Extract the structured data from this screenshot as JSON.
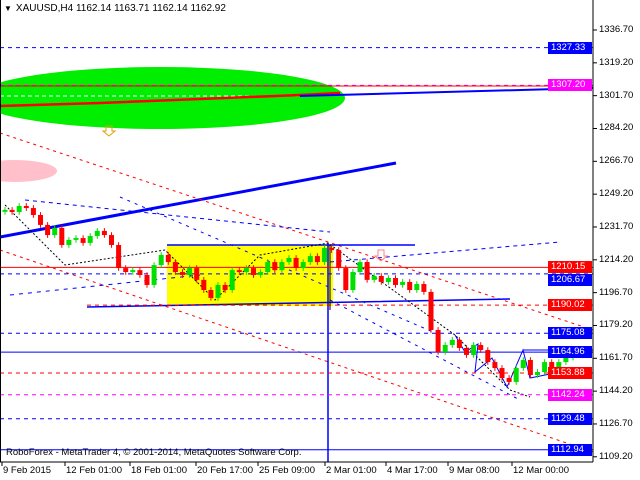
{
  "header": {
    "symbol": "XAUUSD,H4",
    "open": "1162.14",
    "high": "1163.71",
    "low": "1162.14",
    "close": "1162.92"
  },
  "footer": {
    "credit": "RoboForex - MetaTrader 4, © 2001-2014, MetaQuotes Software Corp."
  },
  "colors": {
    "bull": "#00e000",
    "bear": "#ff0000",
    "blue": "#0000ff",
    "red": "#ff0000",
    "magenta": "#ff00ff",
    "zone": "#ffff00",
    "ellipse": "#00ee00"
  },
  "chart_data": {
    "type": "candlestick",
    "symbol": "XAUUSD",
    "timeframe": "H4",
    "ylim": [
      1106,
      1346
    ],
    "y_ticks": [
      "1336.70",
      "1319.20",
      "1301.70",
      "1284.20",
      "1266.70",
      "1249.20",
      "1231.70",
      "1214.20",
      "1196.70",
      "1179.20",
      "1161.70",
      "1144.20",
      "1126.70",
      "1109.20"
    ],
    "x_ticks": [
      "9 Feb 2015",
      "12 Feb 01:00",
      "18 Feb 01:00",
      "20 Feb 17:00",
      "25 Feb 09:00",
      "2 Mar 01:00",
      "4 Mar 17:00",
      "9 Mar 08:00",
      "12 Mar 00:00"
    ],
    "close": [
      1240.8,
      1239.7,
      1242.9,
      1241.8,
      1238.1,
      1232.8,
      1227.4,
      1231.2,
      1222.1,
      1224.8,
      1225.8,
      1223.2,
      1226.9,
      1229.6,
      1227.4,
      1222.1,
      1209.8,
      1207.7,
      1208.7,
      1206.1,
      1200.8,
      1211.4,
      1216.8,
      1213.0,
      1207.7,
      1206.1,
      1209.8,
      1203.5,
      1198.1,
      1193.9,
      1200.8,
      1198.1,
      1208.7,
      1207.7,
      1209.8,
      1206.1,
      1207.7,
      1213.0,
      1208.7,
      1213.0,
      1215.2,
      1209.8,
      1213.0,
      1216.2,
      1213.0,
      1220.5,
      1219.4,
      1209.8,
      1198.1,
      1207.7,
      1213.0,
      1203.5,
      1205.6,
      1202.4,
      1204.5,
      1200.8,
      1202.4,
      1198.1,
      1201.3,
      1197.1,
      1176.8,
      1165.1,
      1168.8,
      1171.5,
      1167.2,
      1163.5,
      1168.8,
      1166.1,
      1159.7,
      1156.5,
      1151.2,
      1149.1,
      1156.5,
      1160.8,
      1152.8,
      1154.4,
      1159.7,
      1156.5,
      1159.7,
      1162.1,
      1162.92
    ],
    "levels": [
      {
        "value": "1327.33",
        "color": "#0000ff",
        "style": "dashed"
      },
      {
        "value": "1307.20",
        "color": "#ff00ff",
        "style": "dashed"
      },
      {
        "value": "1210.15",
        "color": "#ff0000",
        "style": "solid"
      },
      {
        "value": "1206.67",
        "color": "#0000ff",
        "style": "dashed"
      },
      {
        "value": "1190.02",
        "color": "#ff0000",
        "style": "dashed"
      },
      {
        "value": "1175.08",
        "color": "#0000ff",
        "style": "dashed"
      },
      {
        "value": "1164.96",
        "color": "#0000ff",
        "style": "solid"
      },
      {
        "value": "1153.88",
        "color": "#ff0000",
        "style": "dashed"
      },
      {
        "value": "1142.24",
        "color": "#ff00ff",
        "style": "dashed"
      },
      {
        "value": "1129.48",
        "color": "#0000ff",
        "style": "dashed"
      },
      {
        "value": "1112.94",
        "color": "#0000ff",
        "style": "solid"
      }
    ]
  }
}
